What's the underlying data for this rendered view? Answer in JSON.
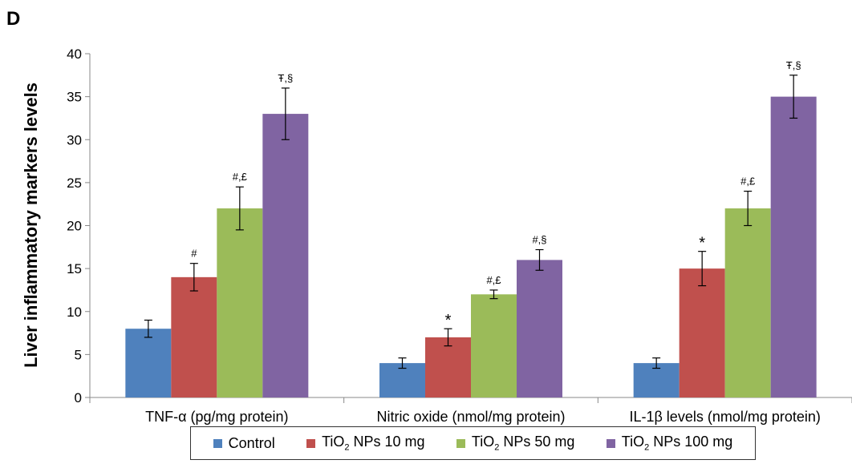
{
  "panel_label": "D",
  "chart_data": {
    "type": "bar",
    "ylabel": "Liver inflammatory markers levels",
    "ylim": [
      0,
      40
    ],
    "yticks": [
      0,
      5,
      10,
      15,
      20,
      25,
      30,
      35,
      40
    ],
    "grid": false,
    "legend_position": "bottom",
    "categories": [
      "TNF-α (pg/mg protein)",
      "Nitric oxide (nmol/mg protein)",
      "IL-1β levels (nmol/mg protein)"
    ],
    "series": [
      {
        "name": "Control",
        "legend_prefix": "Control",
        "legend_sub": "",
        "legend_suffix": "",
        "color": "#4F81BD",
        "values": [
          8,
          4,
          4
        ],
        "errors": [
          1,
          0.6,
          0.6
        ],
        "annotations": [
          "",
          "",
          ""
        ]
      },
      {
        "name": "TiO2 NPs 10 mg",
        "legend_prefix": "TiO",
        "legend_sub": "2",
        "legend_suffix": " NPs 10 mg",
        "color": "#C0504D",
        "values": [
          14,
          7,
          15
        ],
        "errors": [
          1.6,
          1,
          2
        ],
        "annotations": [
          "#",
          "*",
          "*"
        ]
      },
      {
        "name": "TiO2 NPs 50 mg",
        "legend_prefix": "TiO",
        "legend_sub": "2",
        "legend_suffix": " NPs 50 mg",
        "color": "#9BBB59",
        "values": [
          22,
          12,
          22
        ],
        "errors": [
          2.5,
          0.5,
          2
        ],
        "annotations": [
          "#,£",
          "#,£",
          "#,£"
        ]
      },
      {
        "name": "TiO2 NPs 100 mg",
        "legend_prefix": "TiO",
        "legend_sub": "2",
        "legend_suffix": " NPs 100 mg",
        "color": "#8064A2",
        "values": [
          33,
          16,
          35
        ],
        "errors": [
          3,
          1.2,
          2.5
        ],
        "annotations": [
          "Ŧ,§",
          "#,§",
          "Ŧ,§"
        ]
      }
    ]
  }
}
